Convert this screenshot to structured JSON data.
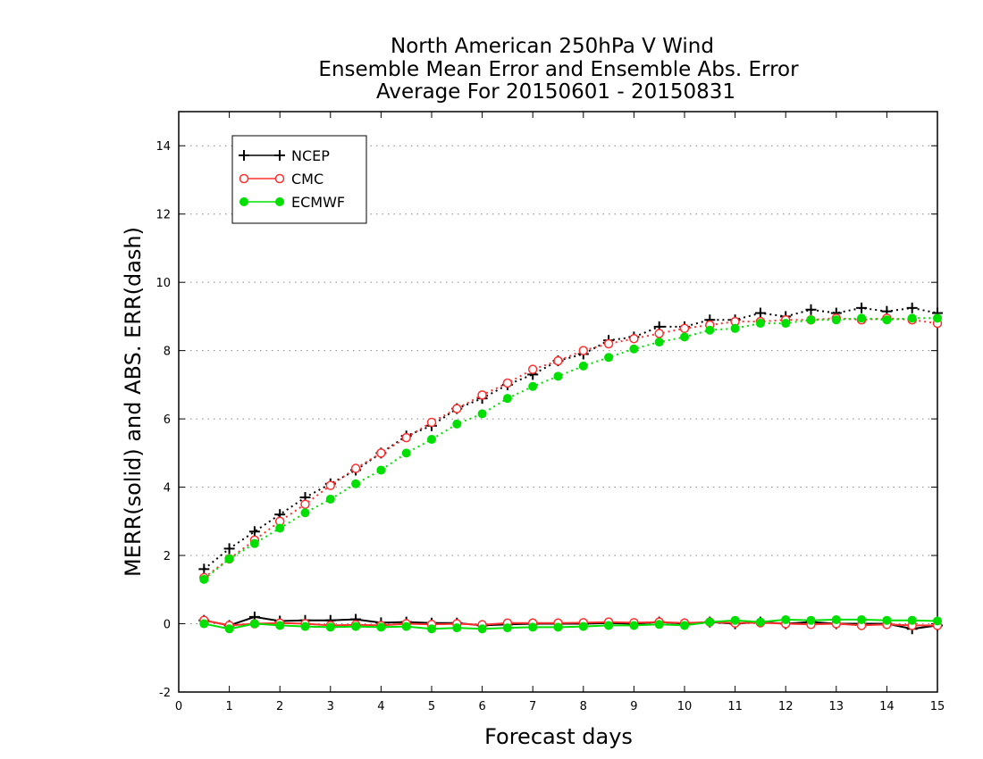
{
  "chart_data": {
    "type": "line",
    "title_lines": [
      "North American 250hPa V Wind",
      "Ensemble Mean Error and Ensemble Abs. Error",
      "Average For 20150601 - 20150831"
    ],
    "xlabel": "Forecast days",
    "ylabel": "MERR(solid) and ABS. ERR(dash)",
    "xlim": [
      0,
      15
    ],
    "ylim": [
      -2,
      15
    ],
    "xticks": [
      "0",
      "1",
      "2",
      "3",
      "4",
      "5",
      "6",
      "7",
      "8",
      "9",
      "10",
      "11",
      "12",
      "13",
      "14",
      "15"
    ],
    "yticks": [
      "-2",
      "0",
      "2",
      "4",
      "6",
      "8",
      "10",
      "12",
      "14"
    ],
    "grid": "horizontal dotted at y ticks",
    "legend_position": "top-left",
    "x": [
      0.5,
      1,
      1.5,
      2,
      2.5,
      3,
      3.5,
      4,
      4.5,
      5,
      5.5,
      6,
      6.5,
      7,
      7.5,
      8,
      8.5,
      9,
      9.5,
      10,
      10.5,
      11,
      11.5,
      12,
      12.5,
      13,
      13.5,
      14,
      14.5,
      15
    ],
    "series": [
      {
        "name": "NCEP",
        "color": "#000000",
        "marker": "plus",
        "abs_err": [
          1.6,
          2.2,
          2.7,
          3.2,
          3.7,
          4.1,
          4.5,
          5.0,
          5.5,
          5.8,
          6.3,
          6.6,
          7.0,
          7.3,
          7.7,
          7.9,
          8.3,
          8.4,
          8.7,
          8.7,
          8.9,
          8.9,
          9.1,
          9.0,
          9.2,
          9.1,
          9.25,
          9.15,
          9.25,
          9.1
        ],
        "mean_err": [
          0.1,
          -0.05,
          0.2,
          0.08,
          0.1,
          0.1,
          0.13,
          0.03,
          0.05,
          0.02,
          0.02,
          -0.05,
          -0.02,
          0.0,
          0.0,
          0.0,
          0.02,
          0.0,
          0.05,
          0.0,
          0.05,
          0.0,
          0.05,
          0.0,
          0.05,
          0.0,
          0.0,
          0.0,
          -0.15,
          -0.05
        ]
      },
      {
        "name": "CMC",
        "color": "#ff3030",
        "marker": "open-circle",
        "abs_err": [
          1.35,
          1.9,
          2.45,
          3.0,
          3.5,
          4.05,
          4.55,
          5.0,
          5.45,
          5.9,
          6.3,
          6.7,
          7.05,
          7.45,
          7.7,
          8.0,
          8.2,
          8.35,
          8.5,
          8.65,
          8.75,
          8.85,
          8.85,
          8.9,
          8.9,
          8.95,
          8.9,
          8.95,
          8.9,
          8.8
        ],
        "mean_err": [
          0.1,
          -0.05,
          0.0,
          0.02,
          0.0,
          -0.05,
          -0.03,
          -0.05,
          0.0,
          -0.02,
          0.0,
          -0.03,
          0.02,
          0.02,
          0.02,
          0.03,
          0.05,
          0.03,
          0.05,
          0.02,
          0.05,
          0.02,
          0.03,
          0.0,
          -0.02,
          0.0,
          -0.05,
          -0.02,
          -0.05,
          -0.05
        ]
      },
      {
        "name": "ECMWF",
        "color": "#00e000",
        "marker": "filled-circle",
        "abs_err": [
          1.3,
          1.9,
          2.35,
          2.8,
          3.25,
          3.65,
          4.1,
          4.5,
          5.0,
          5.4,
          5.85,
          6.15,
          6.6,
          6.95,
          7.25,
          7.55,
          7.8,
          8.05,
          8.25,
          8.4,
          8.6,
          8.65,
          8.8,
          8.8,
          8.9,
          8.9,
          8.95,
          8.9,
          8.95,
          8.95
        ],
        "mean_err": [
          0.0,
          -0.15,
          0.0,
          -0.05,
          -0.08,
          -0.1,
          -0.08,
          -0.1,
          -0.08,
          -0.15,
          -0.12,
          -0.15,
          -0.12,
          -0.1,
          -0.1,
          -0.08,
          -0.05,
          -0.05,
          -0.02,
          -0.05,
          0.05,
          0.1,
          0.05,
          0.12,
          0.1,
          0.12,
          0.12,
          0.1,
          0.1,
          0.08
        ]
      }
    ]
  }
}
